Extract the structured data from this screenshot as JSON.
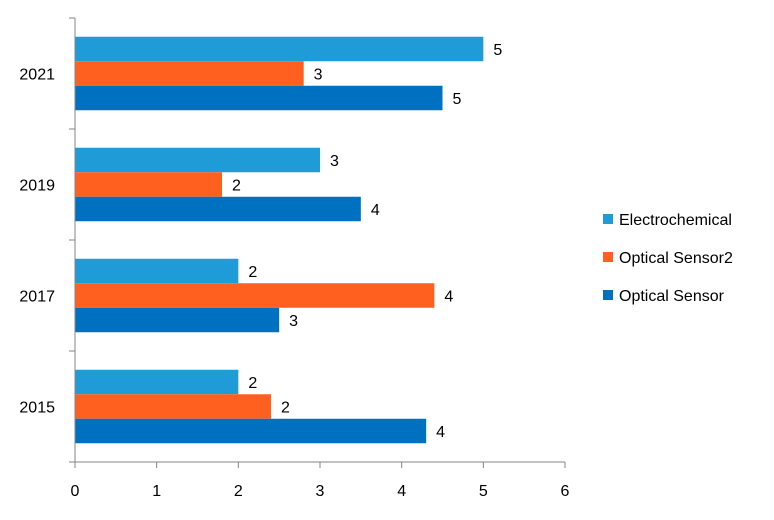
{
  "chart_data": {
    "type": "bar",
    "orientation": "horizontal",
    "title": "",
    "xlabel": "",
    "ylabel": "",
    "xlim": [
      0,
      6
    ],
    "x_ticks": [
      "0",
      "1",
      "2",
      "3",
      "4",
      "5",
      "6"
    ],
    "grid": false,
    "legend_position": "right",
    "categories": [
      "2015",
      "2017",
      "2019",
      "2021"
    ],
    "series": [
      {
        "name": "Optical Sensor",
        "color": "#0070C0",
        "values": [
          4.3,
          2.5,
          3.5,
          4.5
        ],
        "labels": [
          "4",
          "3",
          "4",
          "5"
        ]
      },
      {
        "name": "Optical Sensor2",
        "color": "#FF5F1F",
        "values": [
          2.4,
          4.4,
          1.8,
          2.8
        ],
        "labels": [
          "2",
          "4",
          "2",
          "3"
        ]
      },
      {
        "name": "Electrochemical",
        "color": "#1F9BD7",
        "values": [
          2.0,
          2.0,
          3.0,
          5.0
        ],
        "labels": [
          "2",
          "2",
          "3",
          "5"
        ]
      }
    ],
    "legend_order": [
      "Electrochemical",
      "Optical Sensor2",
      "Optical Sensor"
    ]
  }
}
